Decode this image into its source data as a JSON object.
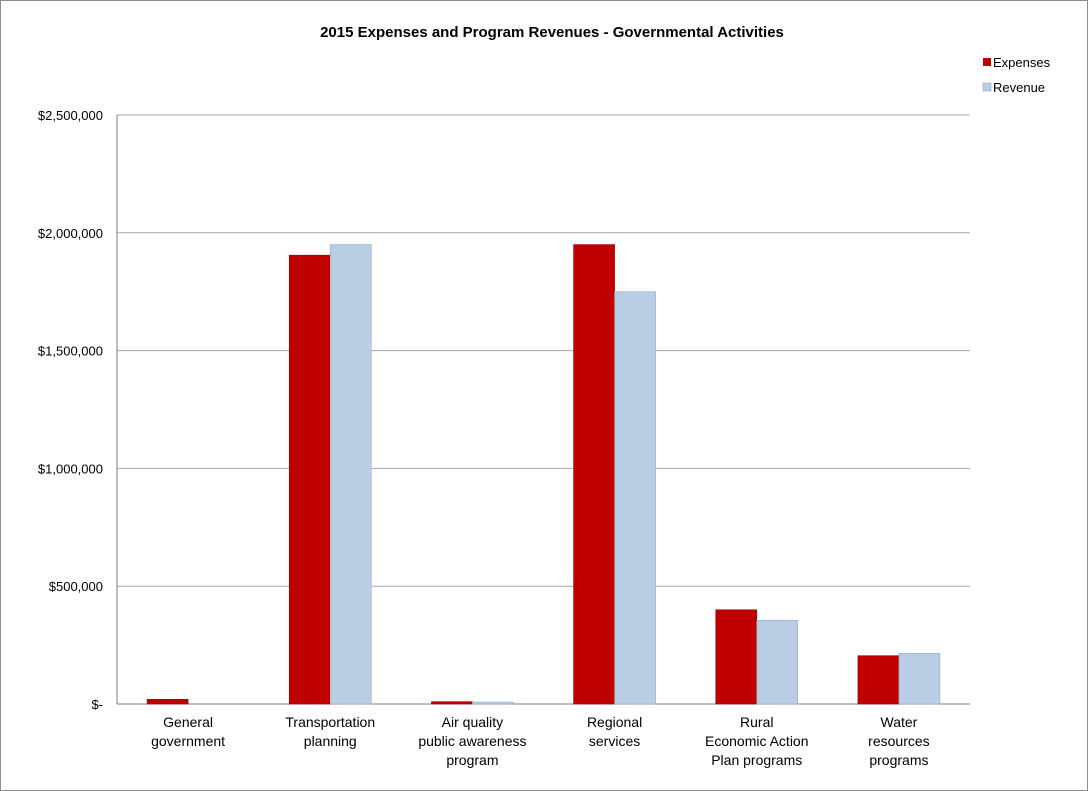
{
  "chart_data": {
    "type": "bar",
    "title": "2015 Expenses and Program Revenues - Governmental Activities",
    "xlabel": "",
    "ylabel": "",
    "categories": [
      [
        "General",
        "government"
      ],
      [
        "Transportation",
        "planning"
      ],
      [
        "Air quality",
        "public awareness",
        "program"
      ],
      [
        "Regional",
        "services"
      ],
      [
        "Rural",
        "Economic Action",
        "Plan programs"
      ],
      [
        "Water",
        "resources",
        "programs"
      ]
    ],
    "series": [
      {
        "name": "Expenses",
        "color": "#c00000",
        "values": [
          20000,
          1905000,
          10000,
          1950000,
          400000,
          205000
        ]
      },
      {
        "name": "Revenue",
        "color": "#b9cde5",
        "values": [
          0,
          1950000,
          8000,
          1750000,
          355000,
          215000
        ]
      }
    ],
    "ylim": [
      0,
      2500000
    ],
    "yticks": [
      0,
      500000,
      1000000,
      1500000,
      2000000,
      2500000
    ],
    "ytick_labels": [
      "$-",
      "$500,000",
      "$1,000,000",
      "$1,500,000",
      "$2,000,000",
      "$2,500,000"
    ],
    "grid": true,
    "legend_position": "top-right"
  }
}
